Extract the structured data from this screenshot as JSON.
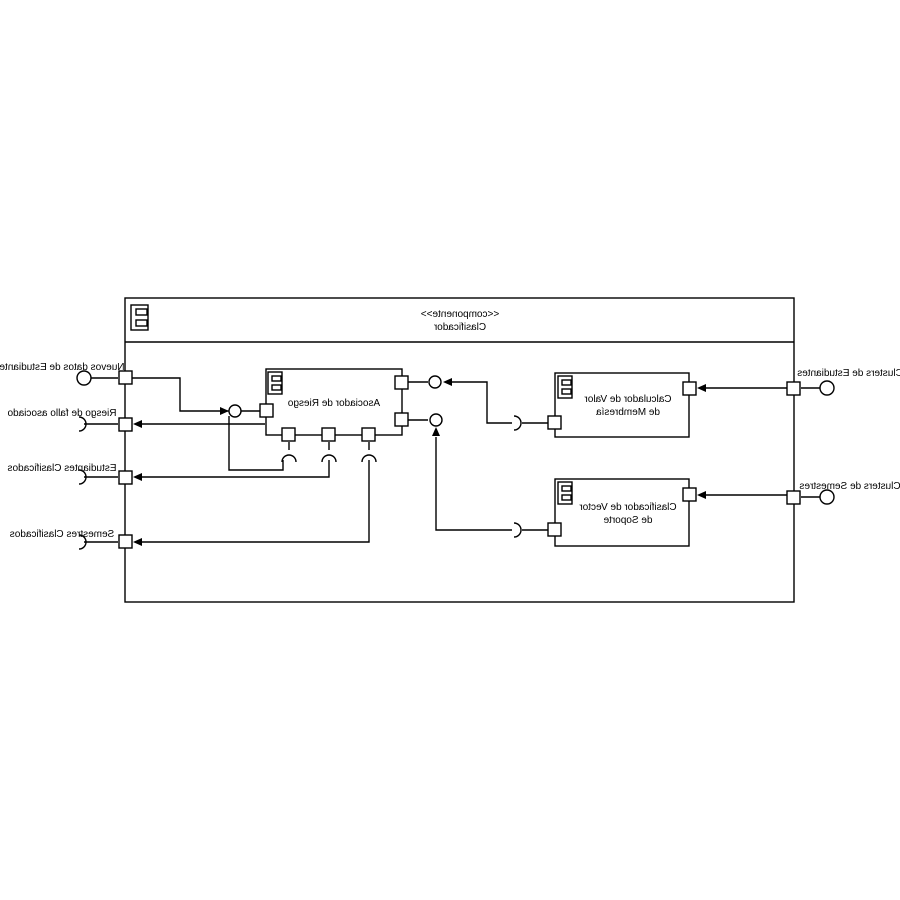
{
  "component": {
    "stereotype": "<<componente>>",
    "name": "Clasificador"
  },
  "inner_components": {
    "asociador": "Asociador de Riesgo",
    "calculador_line1": "Calculador de Valor",
    "calculador_line2": "de Membresía",
    "clasificador_line1": "Clasificador de Vector",
    "clasificador_line2": "de Soporte"
  },
  "external_ports": {
    "nuevos_datos": "Nuevos datos de Estudiante",
    "riesgo_fallo": "Riesgo de fallo asociado",
    "estudiantes_clasificados": "Estudiantes Clasificados",
    "semestres_clasificados": "Semestres Clasificados",
    "clusters_estudiantes": "Clusters de Estudiantes",
    "clusters_semestres": "Clusters de Semestres"
  }
}
